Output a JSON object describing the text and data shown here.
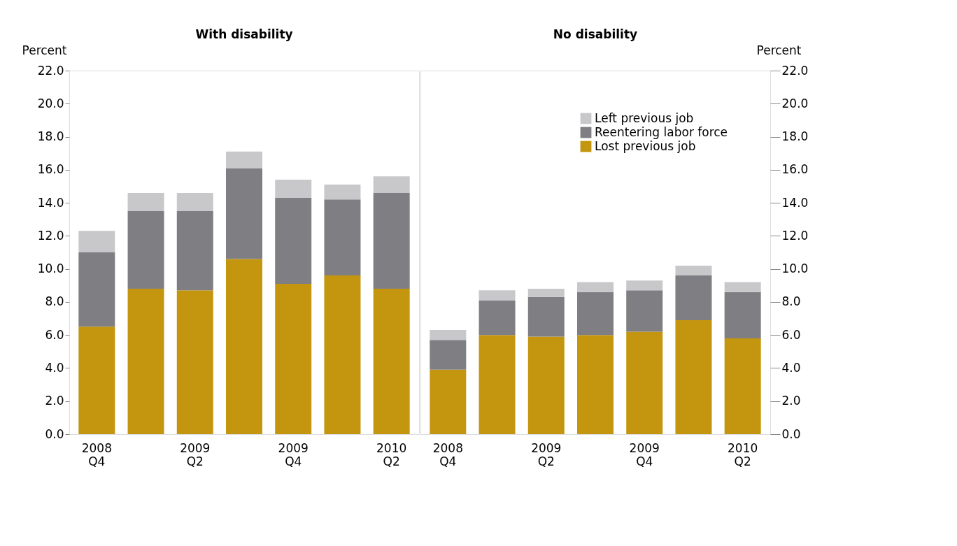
{
  "chart_data": [
    {
      "type": "bar",
      "title": "With disability",
      "ylabel": "Percent",
      "stacked": true,
      "grid": false,
      "legend": false,
      "categories": [
        "2008 Q4",
        null,
        "2009 Q2",
        null,
        "2009 Q4",
        null,
        "2010 Q2"
      ],
      "ylim": [
        0,
        22
      ],
      "yticks": [
        {
          "value": 0,
          "label": "0.0"
        },
        {
          "value": 2,
          "label": "2.0"
        },
        {
          "value": 4,
          "label": "4.0"
        },
        {
          "value": 6,
          "label": "6.0"
        },
        {
          "value": 8,
          "label": "8.0"
        },
        {
          "value": 10,
          "label": "10.0"
        },
        {
          "value": 12,
          "label": "12.0"
        },
        {
          "value": 14,
          "label": "14.0"
        },
        {
          "value": 16,
          "label": "16.0"
        },
        {
          "value": 18,
          "label": "18.0"
        },
        {
          "value": 20,
          "label": "20.0"
        },
        {
          "value": 22,
          "label": "22.0"
        }
      ],
      "series": [
        {
          "color": "#c4960f",
          "values": [
            6.5,
            8.8,
            8.7,
            10.6,
            9.1,
            9.6,
            8.8
          ]
        },
        {
          "color": "#7f7f83",
          "values": [
            4.5,
            4.7,
            4.8,
            5.5,
            5.2,
            4.6,
            5.8
          ]
        },
        {
          "color": "#c8c8ca",
          "values": [
            1.3,
            1.1,
            1.1,
            1.0,
            1.1,
            0.9,
            1.0
          ]
        }
      ]
    },
    {
      "type": "bar",
      "title": "No disability",
      "ylabel": "Percent",
      "stacked": true,
      "grid": false,
      "legend": "top right",
      "categories": [
        "2008 Q4",
        null,
        "2009 Q2",
        null,
        "2009 Q4",
        null,
        "2010 Q2"
      ],
      "ylim": [
        0,
        22
      ],
      "yticks": [
        {
          "value": 0,
          "label": "0.0"
        },
        {
          "value": 2,
          "label": "2.0"
        },
        {
          "value": 4,
          "label": "4.0"
        },
        {
          "value": 6,
          "label": "6.0"
        },
        {
          "value": 8,
          "label": "8.0"
        },
        {
          "value": 10,
          "label": "10.0"
        },
        {
          "value": 12,
          "label": "12.0"
        },
        {
          "value": 14,
          "label": "14.0"
        },
        {
          "value": 16,
          "label": "16.0"
        },
        {
          "value": 18,
          "label": "18.0"
        },
        {
          "value": 20,
          "label": "20.0"
        },
        {
          "value": 22,
          "label": "22.0"
        }
      ],
      "series": [
        {
          "name": "Lost previous job",
          "color": "#c4960f",
          "values": [
            3.9,
            6.0,
            5.9,
            6.0,
            6.2,
            6.9,
            5.8
          ]
        },
        {
          "name": "Reentering labor force",
          "color": "#7f7f83",
          "values": [
            1.8,
            2.1,
            2.4,
            2.6,
            2.5,
            2.7,
            2.8
          ]
        },
        {
          "name": "Left previous job",
          "color": "#c8c8ca",
          "values": [
            0.6,
            0.6,
            0.5,
            0.6,
            0.6,
            0.6,
            0.6
          ]
        }
      ]
    }
  ]
}
